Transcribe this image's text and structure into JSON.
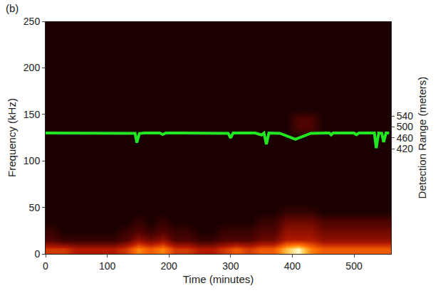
{
  "chart_data": {
    "type": "heatmap",
    "panel_label": "(b)",
    "xlabel": "Time (minutes)",
    "ylabel": "Frequency (kHz)",
    "y2label": "Detection Range (meters)",
    "xlim": [
      0,
      560
    ],
    "xticks": [
      0,
      100,
      200,
      300,
      400,
      500
    ],
    "ylim": [
      0,
      250
    ],
    "yticks": [
      0,
      50,
      100,
      150,
      200,
      250
    ],
    "y2lim": [
      37.5,
      885
    ],
    "y2ticks": [
      420,
      460,
      500,
      540
    ],
    "grid": false,
    "cells": {
      "x": [
        10,
        30,
        50,
        70,
        90,
        110,
        130,
        150,
        170,
        190,
        210,
        230,
        250,
        270,
        290,
        310,
        330,
        350,
        370,
        390,
        410,
        430,
        450,
        470,
        490,
        510,
        530,
        550
      ],
      "y": [
        5,
        15,
        25,
        35,
        45,
        55,
        65,
        75,
        85,
        95,
        105,
        115,
        125,
        135,
        145,
        155,
        165,
        175,
        185,
        195,
        205,
        215,
        225,
        235,
        245
      ],
      "zlim": [
        0,
        10
      ],
      "z": [
        [
          6,
          6,
          5,
          5,
          5,
          5,
          6,
          8,
          7,
          8,
          6,
          6,
          5,
          5,
          6,
          7,
          6,
          7,
          7,
          9,
          10,
          8,
          7,
          7,
          7,
          7,
          7,
          7
        ],
        [
          2,
          1,
          1,
          1,
          1,
          1,
          2,
          4,
          3,
          4,
          2,
          2,
          1,
          1,
          2,
          2,
          2,
          3,
          3,
          5,
          5,
          5,
          4,
          4,
          4,
          4,
          4,
          4
        ],
        [
          1,
          0,
          0,
          0,
          0,
          0,
          1,
          2,
          1,
          2,
          1,
          1,
          0,
          0,
          1,
          1,
          1,
          2,
          2,
          4,
          4,
          4,
          3,
          3,
          3,
          3,
          3,
          3
        ],
        [
          0,
          0,
          0,
          0,
          0,
          0,
          0,
          1,
          0,
          1,
          0,
          0,
          0,
          0,
          0,
          0,
          0,
          1,
          1,
          3,
          3,
          3,
          2,
          2,
          2,
          2,
          2,
          2
        ],
        [
          0,
          0,
          0,
          0,
          0,
          0,
          0,
          0,
          0,
          0,
          0,
          0,
          0,
          0,
          0,
          0,
          0,
          0,
          0,
          1,
          1,
          1,
          0,
          0,
          0,
          0,
          0,
          0
        ],
        [
          0,
          0,
          0,
          0,
          0,
          0,
          0,
          0,
          0,
          0,
          0,
          0,
          0,
          0,
          0,
          0,
          0,
          0,
          0,
          0,
          0,
          0,
          0,
          0,
          0,
          0,
          0,
          0
        ],
        [
          0,
          0,
          0,
          0,
          0,
          0,
          0,
          0,
          0,
          0,
          0,
          0,
          0,
          0,
          0,
          0,
          0,
          0,
          0,
          0,
          0,
          0,
          0,
          0,
          0,
          0,
          0,
          0
        ],
        [
          0,
          0,
          0,
          0,
          0,
          0,
          0,
          0,
          0,
          0,
          0,
          0,
          0,
          0,
          0,
          0,
          0,
          0,
          0,
          0,
          0,
          0,
          0,
          0,
          0,
          0,
          0,
          0
        ],
        [
          0,
          0,
          0,
          0,
          0,
          0,
          0,
          0,
          0,
          0,
          0,
          0,
          0,
          0,
          0,
          0,
          0,
          0,
          0,
          0,
          0,
          0,
          0,
          0,
          0,
          0,
          0,
          0
        ],
        [
          0,
          0,
          0,
          0,
          0,
          0,
          0,
          0,
          0,
          0,
          0,
          0,
          0,
          0,
          0,
          0,
          0,
          0,
          0,
          0,
          0,
          0,
          0,
          0,
          0,
          0,
          0,
          0
        ],
        [
          0,
          0,
          0,
          0,
          0,
          0,
          0,
          0,
          0,
          0,
          0,
          0,
          0,
          0,
          0,
          0,
          0,
          0,
          0,
          0,
          0,
          0,
          0,
          0,
          0,
          0,
          0,
          0
        ],
        [
          0,
          0,
          0,
          0,
          0,
          0,
          0,
          0,
          0,
          0,
          0,
          0,
          0,
          0,
          0,
          0,
          0,
          0,
          0,
          0,
          0,
          0,
          0,
          0,
          0,
          0,
          0,
          0
        ],
        [
          0,
          0,
          0,
          0,
          0,
          0,
          0,
          0,
          0,
          0,
          0,
          0,
          0,
          0,
          0,
          0,
          0,
          0,
          0,
          0,
          0,
          0,
          0,
          0,
          0,
          0,
          0,
          0
        ],
        [
          0,
          0,
          0,
          0,
          0,
          0,
          0,
          0,
          0,
          0,
          0,
          0,
          0,
          0,
          0,
          0,
          0,
          0,
          0,
          0,
          2,
          2,
          0,
          0,
          0,
          0,
          0,
          0
        ],
        [
          0,
          0,
          0,
          0,
          0,
          0,
          0,
          0,
          0,
          0,
          0,
          0,
          0,
          0,
          0,
          0,
          0,
          0,
          0,
          0,
          2,
          2,
          0,
          0,
          0,
          0,
          0,
          0
        ],
        [
          0,
          0,
          0,
          0,
          0,
          0,
          0,
          0,
          0,
          0,
          0,
          0,
          0,
          0,
          0,
          0,
          0,
          0,
          0,
          0,
          0,
          0,
          0,
          0,
          0,
          0,
          0,
          0
        ],
        [
          0,
          0,
          0,
          0,
          0,
          0,
          0,
          0,
          0,
          0,
          0,
          0,
          0,
          0,
          0,
          0,
          0,
          0,
          0,
          0,
          0,
          0,
          0,
          0,
          0,
          0,
          0,
          0
        ],
        [
          0,
          0,
          0,
          0,
          0,
          0,
          0,
          0,
          0,
          0,
          0,
          0,
          0,
          0,
          0,
          0,
          0,
          0,
          0,
          0,
          0,
          0,
          0,
          0,
          0,
          0,
          0,
          0
        ],
        [
          0,
          0,
          0,
          0,
          0,
          0,
          0,
          0,
          0,
          0,
          0,
          0,
          0,
          0,
          0,
          0,
          0,
          0,
          0,
          0,
          0,
          0,
          0,
          0,
          0,
          0,
          0,
          0
        ],
        [
          0,
          0,
          0,
          0,
          0,
          0,
          0,
          0,
          0,
          0,
          0,
          0,
          0,
          0,
          0,
          0,
          0,
          0,
          0,
          0,
          0,
          0,
          0,
          0,
          0,
          0,
          0,
          0
        ],
        [
          0,
          0,
          0,
          0,
          0,
          0,
          0,
          0,
          0,
          0,
          0,
          0,
          0,
          0,
          0,
          0,
          0,
          0,
          0,
          0,
          0,
          0,
          0,
          0,
          0,
          0,
          0,
          0
        ],
        [
          0,
          0,
          0,
          0,
          0,
          0,
          0,
          0,
          0,
          0,
          0,
          0,
          0,
          0,
          0,
          0,
          0,
          0,
          0,
          0,
          0,
          0,
          0,
          0,
          0,
          0,
          0,
          0
        ],
        [
          0,
          0,
          0,
          0,
          0,
          0,
          0,
          0,
          0,
          0,
          0,
          0,
          0,
          0,
          0,
          0,
          0,
          0,
          0,
          0,
          0,
          0,
          0,
          0,
          0,
          0,
          0,
          0
        ],
        [
          0,
          0,
          0,
          0,
          0,
          0,
          0,
          0,
          0,
          0,
          0,
          0,
          0,
          0,
          0,
          0,
          0,
          0,
          0,
          0,
          0,
          0,
          0,
          0,
          0,
          0,
          0,
          0
        ],
        [
          0,
          0,
          0,
          0,
          0,
          0,
          0,
          0,
          0,
          0,
          0,
          0,
          0,
          0,
          0,
          0,
          0,
          0,
          0,
          0,
          0,
          0,
          0,
          0,
          0,
          0,
          0,
          0
        ]
      ]
    },
    "series": [
      {
        "type": "line",
        "axis": "y2",
        "color": "#22e622",
        "x": [
          0,
          50,
          100,
          140,
          145,
          148,
          152,
          160,
          185,
          190,
          195,
          210,
          250,
          296,
          300,
          304,
          340,
          350,
          354,
          358,
          362,
          380,
          405,
          430,
          455,
          460,
          463,
          466,
          490,
          500,
          504,
          508,
          530,
          533,
          536,
          540,
          545,
          548,
          552,
          557
        ],
        "values": [
          478,
          478,
          478,
          478,
          477,
          443,
          476,
          478,
          478,
          473,
          478,
          478,
          478,
          477,
          460,
          478,
          478,
          471,
          478,
          437,
          478,
          477,
          455,
          477,
          478,
          478,
          471,
          478,
          478,
          478,
          472,
          478,
          478,
          478,
          423,
          478,
          477,
          445,
          478,
          478
        ]
      }
    ]
  }
}
